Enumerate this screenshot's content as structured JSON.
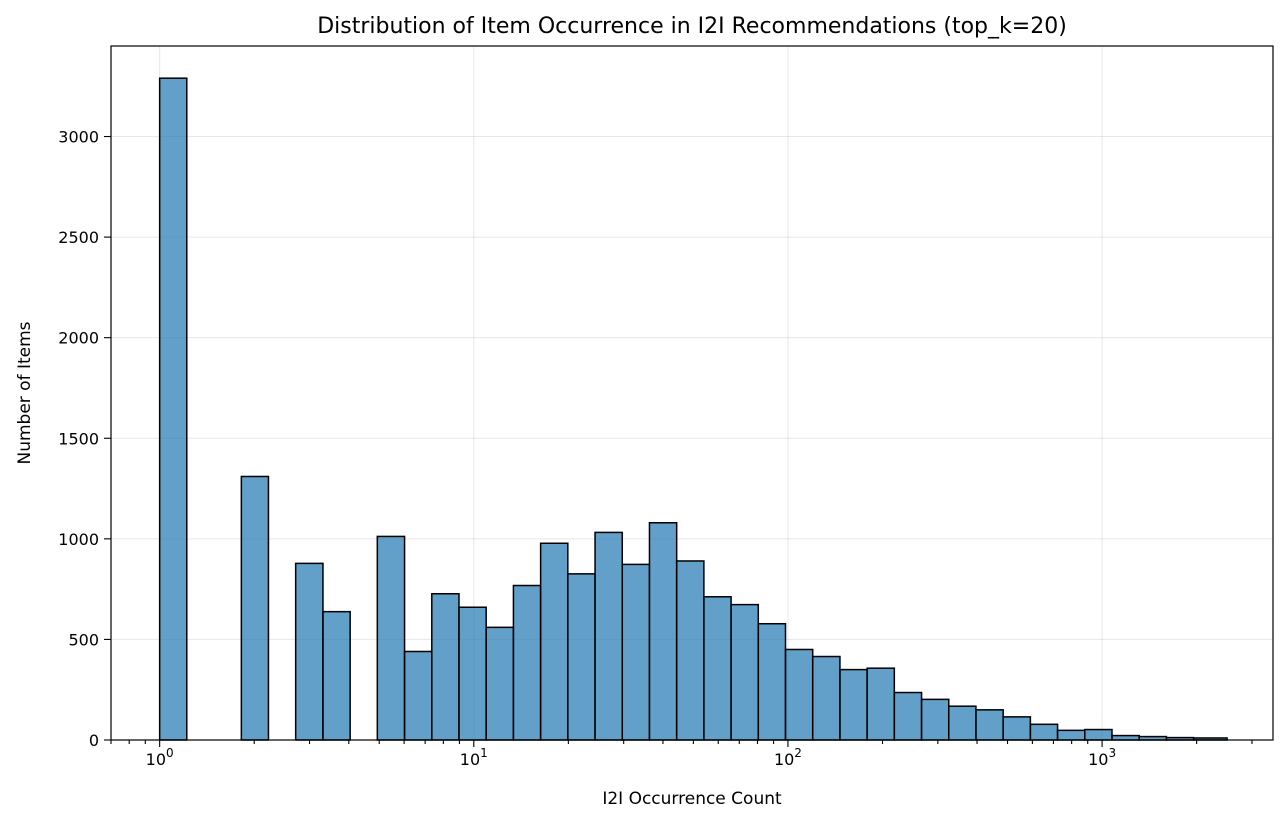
{
  "chart_data": {
    "type": "bar",
    "title": "Distribution of Item Occurrence in I2I Recommendations (top_k=20)",
    "xlabel": "I2I Occurrence Count",
    "ylabel": "Number of Items",
    "x_scale": "log",
    "xlim": [
      0.7,
      3500
    ],
    "ylim": [
      0,
      3450
    ],
    "grid": true,
    "x_ticks": [
      {
        "base": "10",
        "exp": "0",
        "value": 1
      },
      {
        "base": "10",
        "exp": "1",
        "value": 10
      },
      {
        "base": "10",
        "exp": "2",
        "value": 100
      },
      {
        "base": "10",
        "exp": "3",
        "value": 1000
      }
    ],
    "y_ticks": [
      {
        "label": "0",
        "value": 0
      },
      {
        "label": "500",
        "value": 500
      },
      {
        "label": "1000",
        "value": 1000
      },
      {
        "label": "1500",
        "value": 1500
      },
      {
        "label": "2000",
        "value": 2000
      },
      {
        "label": "2500",
        "value": 2500
      },
      {
        "label": "3000",
        "value": 3000
      }
    ],
    "bins": [
      {
        "x0": 1.0,
        "x1": 1.22,
        "value": 3290
      },
      {
        "x0": 1.22,
        "x1": 1.49,
        "value": 0
      },
      {
        "x0": 1.49,
        "x1": 1.82,
        "value": 0
      },
      {
        "x0": 1.82,
        "x1": 2.22,
        "value": 1310
      },
      {
        "x0": 2.22,
        "x1": 2.71,
        "value": 0
      },
      {
        "x0": 2.71,
        "x1": 3.31,
        "value": 878
      },
      {
        "x0": 3.31,
        "x1": 4.04,
        "value": 638
      },
      {
        "x0": 4.04,
        "x1": 4.93,
        "value": 0
      },
      {
        "x0": 4.93,
        "x1": 6.02,
        "value": 1012
      },
      {
        "x0": 6.02,
        "x1": 7.35,
        "value": 440
      },
      {
        "x0": 7.35,
        "x1": 8.97,
        "value": 727
      },
      {
        "x0": 8.97,
        "x1": 10.95,
        "value": 660
      },
      {
        "x0": 10.95,
        "x1": 13.37,
        "value": 560
      },
      {
        "x0": 13.37,
        "x1": 16.32,
        "value": 768
      },
      {
        "x0": 16.32,
        "x1": 19.92,
        "value": 978
      },
      {
        "x0": 19.92,
        "x1": 24.32,
        "value": 826
      },
      {
        "x0": 24.32,
        "x1": 29.69,
        "value": 1032
      },
      {
        "x0": 29.69,
        "x1": 36.24,
        "value": 873
      },
      {
        "x0": 36.24,
        "x1": 44.24,
        "value": 1080
      },
      {
        "x0": 44.24,
        "x1": 54.0,
        "value": 890
      },
      {
        "x0": 54.0,
        "x1": 65.92,
        "value": 712
      },
      {
        "x0": 65.92,
        "x1": 80.47,
        "value": 673
      },
      {
        "x0": 80.47,
        "x1": 98.23,
        "value": 578
      },
      {
        "x0": 98.23,
        "x1": 119.9,
        "value": 450
      },
      {
        "x0": 119.9,
        "x1": 146.4,
        "value": 415
      },
      {
        "x0": 146.4,
        "x1": 178.7,
        "value": 350
      },
      {
        "x0": 178.7,
        "x1": 218.1,
        "value": 357
      },
      {
        "x0": 218.1,
        "x1": 266.3,
        "value": 236
      },
      {
        "x0": 266.3,
        "x1": 325.0,
        "value": 202
      },
      {
        "x0": 325.0,
        "x1": 396.7,
        "value": 168
      },
      {
        "x0": 396.7,
        "x1": 484.3,
        "value": 150
      },
      {
        "x0": 484.3,
        "x1": 591.2,
        "value": 115
      },
      {
        "x0": 591.2,
        "x1": 721.6,
        "value": 78
      },
      {
        "x0": 721.6,
        "x1": 880.9,
        "value": 48
      },
      {
        "x0": 880.9,
        "x1": 1075.3,
        "value": 52
      },
      {
        "x0": 1075.3,
        "x1": 1312.6,
        "value": 22
      },
      {
        "x0": 1312.6,
        "x1": 1602.3,
        "value": 17
      },
      {
        "x0": 1602.3,
        "x1": 1955.9,
        "value": 12
      },
      {
        "x0": 1955.9,
        "x1": 2500.0,
        "value": 10
      }
    ]
  }
}
